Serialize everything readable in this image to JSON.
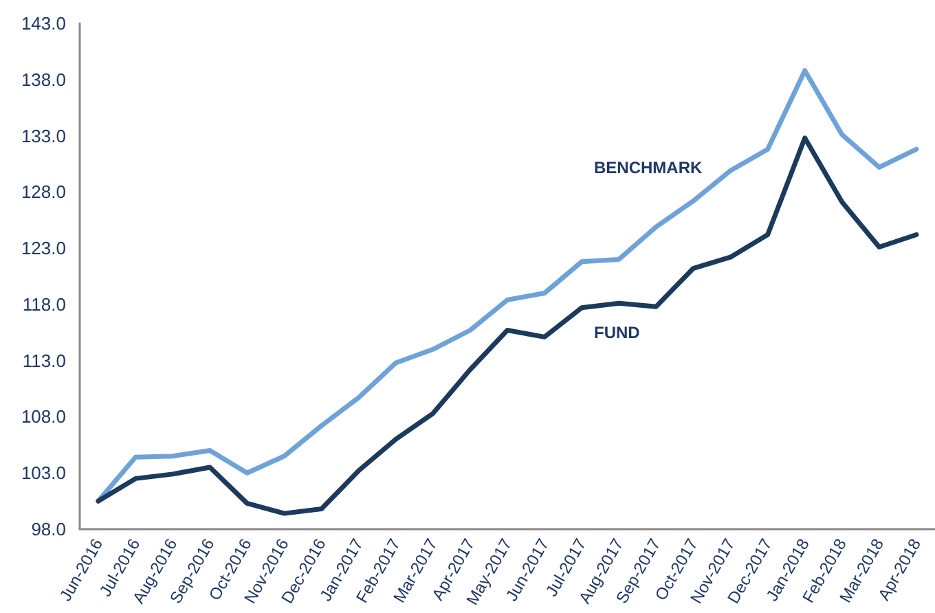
{
  "chart_data": {
    "type": "line",
    "categories": [
      "Jun-2016",
      "Jul-2016",
      "Aug-2016",
      "Sep-2016",
      "Oct-2016",
      "Nov-2016",
      "Dec-2016",
      "Jan-2017",
      "Feb-2017",
      "Mar-2017",
      "Apr-2017",
      "May-2017",
      "Jun-2017",
      "Jul-2017",
      "Aug-2017",
      "Sep-2017",
      "Oct-2017",
      "Nov-2017",
      "Dec-2017",
      "Jan-2018",
      "Feb-2018",
      "Mar-2018",
      "Apr-2018"
    ],
    "series": [
      {
        "name": "BENCHMARK",
        "color": "#6fa3d8",
        "values": [
          100.5,
          104.4,
          104.5,
          105.0,
          103.0,
          104.5,
          107.2,
          109.7,
          112.8,
          114.0,
          115.7,
          118.4,
          119.0,
          121.8,
          122.0,
          124.9,
          127.2,
          129.9,
          131.8,
          138.8,
          133.1,
          130.2,
          131.8
        ]
      },
      {
        "name": "FUND",
        "color": "#1b3a5c",
        "values": [
          100.5,
          102.5,
          102.9,
          103.5,
          100.3,
          99.4,
          99.8,
          103.2,
          106.0,
          108.3,
          112.2,
          115.7,
          115.1,
          117.7,
          118.1,
          117.8,
          121.2,
          122.2,
          124.2,
          132.8,
          127.1,
          123.1,
          124.2
        ]
      }
    ],
    "ylim": [
      98,
      143
    ],
    "yticks": [
      {
        "value": 98,
        "label": "98.0"
      },
      {
        "value": 103,
        "label": "103.0"
      },
      {
        "value": 108,
        "label": "108.0"
      },
      {
        "value": 113,
        "label": "113.0"
      },
      {
        "value": 118,
        "label": "118.0"
      },
      {
        "value": 123,
        "label": "123.0"
      },
      {
        "value": 128,
        "label": "128.0"
      },
      {
        "value": 133,
        "label": "133.0"
      },
      {
        "value": 138,
        "label": "138.0"
      },
      {
        "value": 143,
        "label": "143.0"
      }
    ],
    "grid": false,
    "legend": false,
    "marker": "none",
    "line_style": "solid"
  }
}
